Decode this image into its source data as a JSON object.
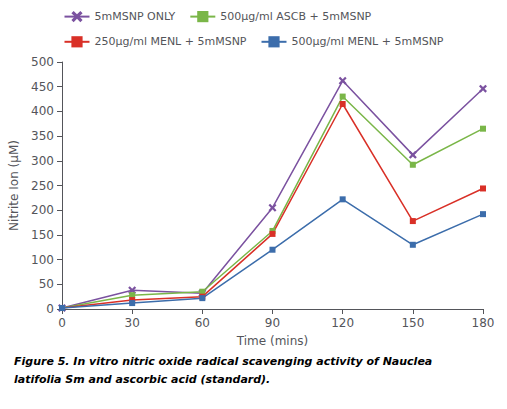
{
  "chart_data": {
    "type": "line",
    "x": [
      0,
      30,
      60,
      90,
      120,
      150,
      180
    ],
    "series": [
      {
        "name": "5mMSNP ONLY",
        "color": "#7B52A0",
        "marker": "x",
        "values": [
          2,
          38,
          32,
          205,
          462,
          312,
          446
        ]
      },
      {
        "name": "500µg/ml ASCB + 5mMSNP",
        "color": "#7AB648",
        "marker": "square",
        "values": [
          2,
          28,
          35,
          158,
          430,
          292,
          365
        ]
      },
      {
        "name": "250µg/ml MENL + 5mMSNP",
        "color": "#D93027",
        "marker": "square",
        "values": [
          2,
          18,
          25,
          152,
          415,
          178,
          244
        ]
      },
      {
        "name": "500µg/ml MENL + 5mMSNP",
        "color": "#3C6DAB",
        "marker": "square",
        "values": [
          2,
          12,
          22,
          120,
          222,
          130,
          192
        ]
      }
    ],
    "x_label": "Time (mins)",
    "y_label": "Nitrite Ion (µM)",
    "xlim": [
      0,
      180
    ],
    "xticks": [
      0,
      30,
      60,
      90,
      120,
      150,
      180
    ],
    "ylim": [
      0,
      500
    ],
    "yticks": [
      0,
      50,
      100,
      150,
      200,
      250,
      300,
      350,
      400,
      450,
      500
    ],
    "grid": false,
    "legend": "top",
    "annotations": [
      "Figure 5. In vitro nitric oxide radical scavenging activity of Nauclea",
      "latifolia Sm and ascorbic acid (standard)."
    ]
  }
}
